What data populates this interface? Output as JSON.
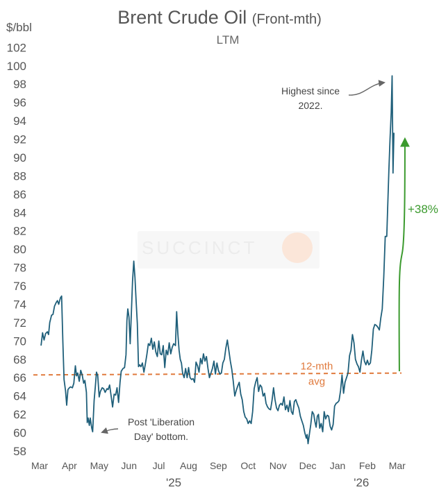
{
  "chart_data": {
    "type": "line",
    "title": "Brent Crude Oil",
    "title_qualifier": "(Front-mth)",
    "subtitle": "LTM",
    "ylabel": "$/bbl",
    "ylim": [
      58,
      102
    ],
    "yticks": [
      58,
      60,
      62,
      64,
      66,
      68,
      70,
      72,
      74,
      76,
      78,
      80,
      82,
      84,
      86,
      88,
      90,
      92,
      94,
      96,
      98,
      100,
      102
    ],
    "x_start": "Mar '25",
    "x_end": "early Mar '26",
    "xlim": [
      0,
      12
    ],
    "x_tick_labels": [
      "Mar",
      "Apr",
      "May",
      "Jun",
      "Jul",
      "Aug",
      "Sep",
      "Oct",
      "Nov",
      "Dec",
      "Jan",
      "Feb",
      "Mar"
    ],
    "year_labels": [
      {
        "label": "'25",
        "x": 4.5
      },
      {
        "label": "'26",
        "x": 10.8
      }
    ],
    "series": [
      {
        "name": "Brent Crude Oil (Front-mth)",
        "color": "#1f5f7a",
        "points": [
          [
            0.05,
            69.5
          ],
          [
            0.1,
            70.9
          ],
          [
            0.15,
            70.1
          ],
          [
            0.2,
            70.8
          ],
          [
            0.26,
            71.0
          ],
          [
            0.3,
            70.7
          ],
          [
            0.34,
            72.0
          ],
          [
            0.4,
            72.8
          ],
          [
            0.45,
            72.9
          ],
          [
            0.5,
            73.8
          ],
          [
            0.56,
            74.2
          ],
          [
            0.6,
            74.4
          ],
          [
            0.64,
            74.0
          ],
          [
            0.7,
            74.7
          ],
          [
            0.74,
            74.9
          ],
          [
            0.78,
            69.9
          ],
          [
            0.82,
            65.8
          ],
          [
            0.87,
            64.6
          ],
          [
            0.91,
            63.0
          ],
          [
            0.95,
            64.7
          ],
          [
            1.0,
            64.9
          ],
          [
            1.04,
            65.0
          ],
          [
            1.1,
            64.9
          ],
          [
            1.15,
            65.4
          ],
          [
            1.2,
            67.3
          ],
          [
            1.24,
            66.2
          ],
          [
            1.28,
            66.5
          ],
          [
            1.33,
            65.6
          ],
          [
            1.38,
            66.8
          ],
          [
            1.43,
            66.3
          ],
          [
            1.48,
            65.4
          ],
          [
            1.52,
            65.7
          ],
          [
            1.57,
            64.4
          ],
          [
            1.6,
            61.1
          ],
          [
            1.63,
            61.6
          ],
          [
            1.67,
            60.8
          ],
          [
            1.7,
            61.6
          ],
          [
            1.75,
            60.5
          ],
          [
            1.78,
            60.1
          ],
          [
            1.83,
            63.5
          ],
          [
            1.87,
            65.0
          ],
          [
            1.91,
            66.6
          ],
          [
            1.95,
            66.2
          ],
          [
            2.0,
            63.9
          ],
          [
            2.04,
            64.5
          ],
          [
            2.1,
            64.9
          ],
          [
            2.15,
            64.8
          ],
          [
            2.2,
            64.4
          ],
          [
            2.26,
            64.8
          ],
          [
            2.3,
            64.7
          ],
          [
            2.35,
            65.2
          ],
          [
            2.4,
            64.0
          ],
          [
            2.45,
            62.8
          ],
          [
            2.5,
            64.2
          ],
          [
            2.55,
            64.1
          ],
          [
            2.6,
            64.9
          ],
          [
            2.65,
            63.3
          ],
          [
            2.7,
            65.5
          ],
          [
            2.74,
            66.7
          ],
          [
            2.8,
            67.0
          ],
          [
            2.85,
            67.1
          ],
          [
            2.9,
            68.5
          ],
          [
            2.93,
            72.2
          ],
          [
            2.96,
            73.5
          ],
          [
            3.0,
            72.6
          ],
          [
            3.04,
            69.7
          ],
          [
            3.08,
            73.0
          ],
          [
            3.12,
            76.5
          ],
          [
            3.16,
            78.7
          ],
          [
            3.2,
            76.9
          ],
          [
            3.24,
            74.3
          ],
          [
            3.28,
            71.9
          ],
          [
            3.32,
            67.2
          ],
          [
            3.36,
            67.4
          ],
          [
            3.4,
            67.2
          ],
          [
            3.45,
            67.6
          ],
          [
            3.5,
            66.6
          ],
          [
            3.55,
            67.5
          ],
          [
            3.6,
            68.5
          ],
          [
            3.65,
            69.7
          ],
          [
            3.7,
            69.5
          ],
          [
            3.75,
            70.3
          ],
          [
            3.8,
            69.1
          ],
          [
            3.85,
            69.9
          ],
          [
            3.9,
            68.8
          ],
          [
            3.95,
            68.3
          ],
          [
            4.0,
            70.0
          ],
          [
            4.05,
            68.6
          ],
          [
            4.1,
            68.5
          ],
          [
            4.15,
            69.5
          ],
          [
            4.2,
            67.1
          ],
          [
            4.25,
            69.0
          ],
          [
            4.3,
            68.5
          ],
          [
            4.35,
            69.8
          ],
          [
            4.4,
            68.6
          ],
          [
            4.45,
            69.3
          ],
          [
            4.5,
            69.7
          ],
          [
            4.56,
            69.5
          ],
          [
            4.6,
            73.2
          ],
          [
            4.64,
            70.7
          ],
          [
            4.68,
            69.0
          ],
          [
            4.72,
            68.0
          ],
          [
            4.76,
            67.6
          ],
          [
            4.8,
            66.5
          ],
          [
            4.85,
            66.0
          ],
          [
            4.9,
            67.0
          ],
          [
            4.95,
            66.0
          ],
          [
            5.0,
            67.1
          ],
          [
            5.05,
            66.0
          ],
          [
            5.1,
            65.8
          ],
          [
            5.15,
            65.9
          ],
          [
            5.2,
            65.5
          ],
          [
            5.25,
            67.7
          ],
          [
            5.3,
            67.3
          ],
          [
            5.35,
            66.6
          ],
          [
            5.4,
            68.1
          ],
          [
            5.45,
            67.5
          ],
          [
            5.5,
            68.6
          ],
          [
            5.55,
            67.8
          ],
          [
            5.6,
            68.3
          ],
          [
            5.65,
            67.0
          ],
          [
            5.7,
            66.0
          ],
          [
            5.75,
            66.5
          ],
          [
            5.8,
            67.0
          ],
          [
            5.85,
            67.8
          ],
          [
            5.9,
            66.4
          ],
          [
            5.95,
            67.6
          ],
          [
            6.0,
            66.8
          ],
          [
            6.05,
            66.4
          ],
          [
            6.1,
            66.5
          ],
          [
            6.15,
            67.6
          ],
          [
            6.2,
            68.0
          ],
          [
            6.25,
            69.2
          ],
          [
            6.3,
            70.1
          ],
          [
            6.35,
            69.0
          ],
          [
            6.4,
            67.8
          ],
          [
            6.45,
            66.9
          ],
          [
            6.5,
            65.6
          ],
          [
            6.55,
            64.0
          ],
          [
            6.6,
            64.6
          ],
          [
            6.65,
            65.1
          ],
          [
            6.7,
            65.5
          ],
          [
            6.75,
            64.2
          ],
          [
            6.8,
            63.6
          ],
          [
            6.85,
            62.3
          ],
          [
            6.9,
            61.7
          ],
          [
            6.95,
            61.5
          ],
          [
            7.0,
            61.0
          ],
          [
            7.05,
            61.3
          ],
          [
            7.1,
            61.0
          ],
          [
            7.15,
            62.3
          ],
          [
            7.2,
            64.8
          ],
          [
            7.25,
            65.5
          ],
          [
            7.3,
            66.0
          ],
          [
            7.35,
            64.5
          ],
          [
            7.4,
            65.2
          ],
          [
            7.45,
            65.0
          ],
          [
            7.5,
            64.0
          ],
          [
            7.55,
            64.3
          ],
          [
            7.6,
            63.2
          ],
          [
            7.65,
            62.8
          ],
          [
            7.7,
            62.6
          ],
          [
            7.75,
            62.5
          ],
          [
            7.8,
            63.5
          ],
          [
            7.85,
            64.9
          ],
          [
            7.9,
            63.6
          ],
          [
            7.95,
            62.7
          ],
          [
            8.0,
            62.4
          ],
          [
            8.05,
            63.0
          ],
          [
            8.1,
            63.2
          ],
          [
            8.15,
            63.0
          ],
          [
            8.2,
            63.9
          ],
          [
            8.25,
            62.5
          ],
          [
            8.3,
            63.0
          ],
          [
            8.35,
            62.3
          ],
          [
            8.4,
            63.5
          ],
          [
            8.45,
            62.3
          ],
          [
            8.5,
            62.0
          ],
          [
            8.55,
            63.4
          ],
          [
            8.6,
            63.6
          ],
          [
            8.65,
            63.1
          ],
          [
            8.7,
            62.7
          ],
          [
            8.75,
            61.8
          ],
          [
            8.8,
            61.3
          ],
          [
            8.85,
            60.8
          ],
          [
            8.9,
            60.0
          ],
          [
            8.95,
            59.4
          ],
          [
            8.98,
            59.8
          ],
          [
            9.01,
            58.8
          ],
          [
            9.06,
            60.0
          ],
          [
            9.1,
            60.9
          ],
          [
            9.15,
            62.3
          ],
          [
            9.2,
            62.0
          ],
          [
            9.24,
            61.2
          ],
          [
            9.28,
            60.6
          ],
          [
            9.32,
            61.8
          ],
          [
            9.36,
            62.0
          ],
          [
            9.4,
            60.5
          ],
          [
            9.45,
            61.0
          ],
          [
            9.5,
            60.1
          ],
          [
            9.55,
            62.3
          ],
          [
            9.6,
            61.5
          ],
          [
            9.65,
            61.9
          ],
          [
            9.7,
            61.8
          ],
          [
            9.75,
            60.7
          ],
          [
            9.8,
            60.3
          ],
          [
            9.85,
            60.9
          ],
          [
            9.9,
            62.9
          ],
          [
            9.95,
            63.2
          ],
          [
            10.0,
            63.3
          ],
          [
            10.05,
            63.5
          ],
          [
            10.1,
            64.6
          ],
          [
            10.15,
            66.3
          ],
          [
            10.2,
            64.3
          ],
          [
            10.25,
            65.5
          ],
          [
            10.3,
            66.0
          ],
          [
            10.35,
            66.5
          ],
          [
            10.4,
            68.4
          ],
          [
            10.45,
            69.0
          ],
          [
            10.5,
            70.7
          ],
          [
            10.55,
            69.8
          ],
          [
            10.6,
            68.0
          ],
          [
            10.65,
            67.5
          ],
          [
            10.7,
            67.2
          ],
          [
            10.75,
            66.6
          ],
          [
            10.8,
            67.9
          ],
          [
            10.85,
            68.9
          ],
          [
            10.9,
            67.8
          ],
          [
            10.95,
            67.4
          ],
          [
            11.0,
            67.9
          ],
          [
            11.05,
            67.4
          ],
          [
            11.1,
            67.6
          ],
          [
            11.15,
            69.0
          ],
          [
            11.2,
            71.3
          ],
          [
            11.25,
            71.8
          ],
          [
            11.3,
            71.7
          ],
          [
            11.35,
            71.5
          ],
          [
            11.4,
            71.2
          ],
          [
            11.45,
            72.5
          ],
          [
            11.5,
            73.5
          ],
          [
            11.55,
            77.0
          ],
          [
            11.6,
            81.4
          ],
          [
            11.65,
            81.4
          ],
          [
            11.68,
            84.5
          ],
          [
            11.72,
            88.5
          ],
          [
            11.76,
            92.0
          ],
          [
            11.8,
            94.9
          ],
          [
            11.83,
            98.9
          ],
          [
            11.86,
            88.3
          ],
          [
            11.89,
            92.7
          ]
        ]
      }
    ],
    "reference_line": {
      "label": "12-mth avg",
      "label_line1": "12-mth",
      "label_line2": "avg",
      "value": 66.3,
      "value_end": 66.5,
      "color": "#e07a3d",
      "style": "dashed"
    },
    "change_arrow": {
      "label": "+38%",
      "from": 66.7,
      "to": 92.0,
      "x": 12.05,
      "color": "#3b9a2e"
    },
    "annotations": [
      {
        "line1": "Post 'Liberation",
        "line2": "Day' bottom.",
        "points_to": [
          1.78,
          60.1
        ]
      },
      {
        "line1": "Highest since",
        "line2": "2022.",
        "points_to": [
          11.83,
          98.9
        ]
      }
    ],
    "watermark": "SUCCINCT"
  }
}
